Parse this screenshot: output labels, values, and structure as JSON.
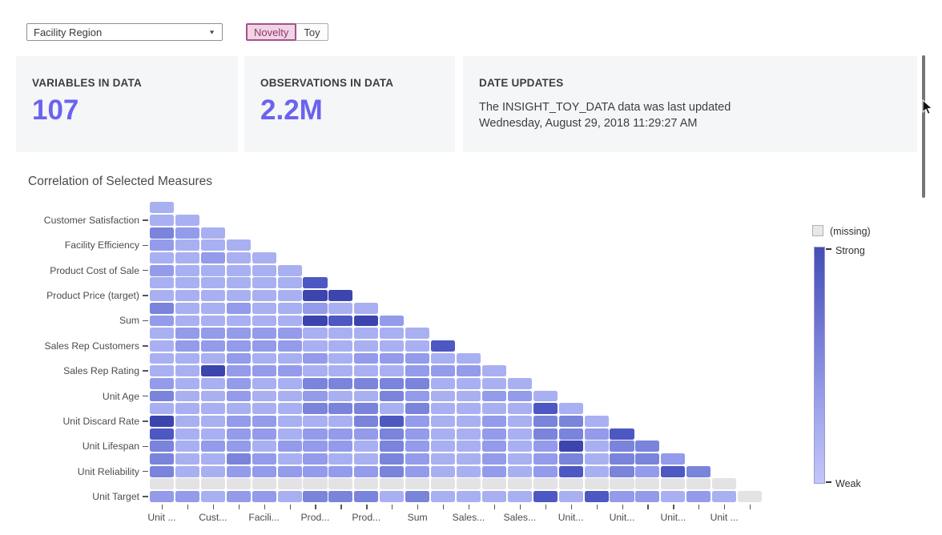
{
  "controls": {
    "region_dropdown": {
      "value": "Facility Region",
      "caret": "▼"
    },
    "chips": {
      "selected": "Novelty",
      "items": [
        "Novelty",
        "Toy"
      ]
    }
  },
  "cards": [
    {
      "title": "VARIABLES IN DATA",
      "value": "107"
    },
    {
      "title": "OBSERVATIONS IN DATA",
      "value": "2.2M"
    },
    {
      "title": "DATE UPDATES",
      "line1": "The INSIGHT_TOY_DATA data was last updated",
      "line2": "Wednesday, August 29, 2018 11:29:27 AM"
    }
  ],
  "colors": {
    "accent_number": "#6a63ef",
    "chip_selected_border": "#a94f8c",
    "chip_selected_bg": "#eed6e4",
    "chip_selected_text": "#99326f",
    "card_bg": "#f5f6f8"
  },
  "chart_data": {
    "type": "heatmap",
    "title": "Correlation of Selected Measures",
    "subtype": "lower-triangular correlation matrix, 24 rows x 24 cols, axis labels thinned to every other tick",
    "y_labels": [
      "Customer Satisfaction",
      "Facility Efficiency",
      "Product Cost of Sale",
      "Product Price (target)",
      "Sum",
      "Sales Rep Customers",
      "Sales Rep Rating",
      "Unit Age",
      "Unit Discard Rate",
      "Unit Lifespan",
      "Unit Reliability",
      "Unit Target"
    ],
    "y_label_rows": [
      1,
      3,
      5,
      7,
      9,
      11,
      13,
      15,
      17,
      19,
      21,
      23
    ],
    "x_labels": [
      "Unit ...",
      "Cust...",
      "Facili...",
      "Prod...",
      "Prod...",
      "Sum",
      "Sales...",
      "Sales...",
      "Unit...",
      "Unit...",
      "Unit...",
      "Unit ..."
    ],
    "x_label_cols": [
      0,
      2,
      4,
      6,
      8,
      10,
      12,
      14,
      16,
      18,
      20,
      22
    ],
    "legend": {
      "missing_label": "(missing)",
      "strong_label": "Strong",
      "weak_label": "Weak"
    },
    "palette": {
      "0": "#a9b0f1",
      "1": "#939bea",
      "2": "#7a84db",
      "3": "#4d58c2",
      "4": "#3b45ad",
      "9": "#e3e3e5"
    },
    "level_meaning": {
      "0": "weak",
      "1": "medium-weak",
      "2": "medium",
      "3": "strong",
      "4": "strongest",
      "9": "missing"
    },
    "matrix": [
      [
        0
      ],
      [
        0,
        0
      ],
      [
        2,
        1,
        0
      ],
      [
        1,
        0,
        0,
        0
      ],
      [
        0,
        0,
        1,
        0,
        0
      ],
      [
        1,
        0,
        0,
        0,
        0,
        0
      ],
      [
        0,
        0,
        0,
        0,
        0,
        0,
        3
      ],
      [
        0,
        0,
        0,
        0,
        0,
        0,
        4,
        4
      ],
      [
        2,
        0,
        0,
        1,
        0,
        0,
        1,
        0,
        0
      ],
      [
        1,
        0,
        0,
        0,
        0,
        0,
        4,
        3,
        4,
        1
      ],
      [
        0,
        1,
        1,
        1,
        1,
        1,
        0,
        0,
        0,
        0,
        0
      ],
      [
        0,
        1,
        1,
        1,
        1,
        1,
        0,
        0,
        0,
        0,
        0,
        3
      ],
      [
        0,
        0,
        0,
        1,
        0,
        0,
        1,
        0,
        1,
        1,
        1,
        0,
        0
      ],
      [
        0,
        0,
        4,
        1,
        1,
        1,
        0,
        0,
        0,
        0,
        1,
        1,
        1,
        0
      ],
      [
        1,
        0,
        0,
        1,
        0,
        0,
        2,
        2,
        2,
        2,
        2,
        0,
        0,
        0,
        0
      ],
      [
        2,
        0,
        0,
        1,
        0,
        0,
        1,
        0,
        0,
        2,
        1,
        0,
        0,
        1,
        1,
        0
      ],
      [
        0,
        0,
        0,
        0,
        0,
        0,
        2,
        2,
        2,
        0,
        2,
        0,
        0,
        0,
        0,
        3,
        0
      ],
      [
        4,
        0,
        0,
        1,
        1,
        0,
        0,
        0,
        2,
        3,
        1,
        0,
        0,
        1,
        0,
        2,
        2,
        0
      ],
      [
        3,
        0,
        0,
        1,
        1,
        0,
        1,
        1,
        1,
        2,
        1,
        0,
        0,
        1,
        0,
        2,
        2,
        1,
        3
      ],
      [
        2,
        0,
        1,
        1,
        0,
        1,
        1,
        1,
        0,
        2,
        1,
        0,
        0,
        1,
        0,
        1,
        4,
        0,
        2,
        2
      ],
      [
        2,
        0,
        0,
        2,
        1,
        0,
        1,
        0,
        0,
        2,
        1,
        0,
        0,
        1,
        0,
        1,
        2,
        0,
        2,
        2,
        1
      ],
      [
        2,
        0,
        0,
        1,
        1,
        1,
        1,
        1,
        1,
        2,
        1,
        0,
        0,
        1,
        0,
        1,
        3,
        0,
        2,
        1,
        3,
        2
      ],
      [
        9,
        9,
        9,
        9,
        9,
        9,
        9,
        9,
        9,
        9,
        9,
        9,
        9,
        9,
        9,
        9,
        9,
        9,
        9,
        9,
        9,
        9,
        9
      ],
      [
        1,
        1,
        0,
        1,
        1,
        0,
        2,
        2,
        2,
        0,
        2,
        0,
        0,
        0,
        0,
        3,
        0,
        3,
        1,
        1,
        0,
        1,
        0,
        9
      ]
    ]
  }
}
